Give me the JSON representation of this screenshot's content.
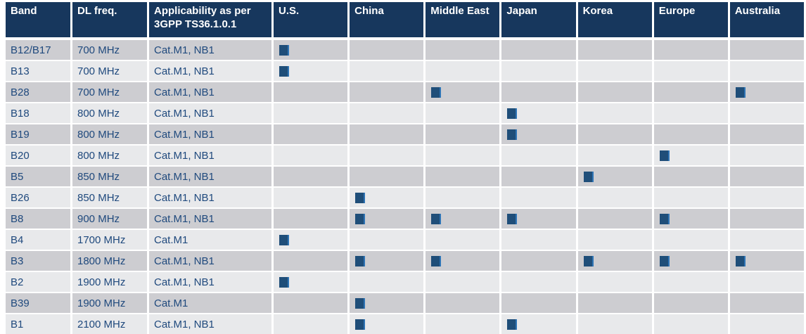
{
  "table": {
    "columns": [
      {
        "key": "band",
        "label": "Band",
        "type": "text"
      },
      {
        "key": "dl_freq",
        "label": "DL freq.",
        "type": "text"
      },
      {
        "key": "applicability",
        "label": "Applicability as per 3GPP TS36.1.0.1",
        "type": "text"
      },
      {
        "key": "us",
        "label": "U.S.",
        "type": "region"
      },
      {
        "key": "china",
        "label": "China",
        "type": "region"
      },
      {
        "key": "middle_east",
        "label": "Middle East",
        "type": "region"
      },
      {
        "key": "japan",
        "label": "Japan",
        "type": "region"
      },
      {
        "key": "korea",
        "label": "Korea",
        "type": "region"
      },
      {
        "key": "europe",
        "label": "Europe",
        "type": "region"
      },
      {
        "key": "australia",
        "label": "Australia",
        "type": "region"
      }
    ],
    "rows": [
      {
        "band": "B12/B17",
        "dl_freq": "700 MHz",
        "applicability": "Cat.M1, NB1",
        "regions": [
          "us"
        ]
      },
      {
        "band": "B13",
        "dl_freq": "700 MHz",
        "applicability": "Cat.M1, NB1",
        "regions": [
          "us"
        ]
      },
      {
        "band": "B28",
        "dl_freq": "700 MHz",
        "applicability": "Cat.M1, NB1",
        "regions": [
          "middle_east",
          "australia"
        ]
      },
      {
        "band": "B18",
        "dl_freq": "800 MHz",
        "applicability": "Cat.M1, NB1",
        "regions": [
          "japan"
        ]
      },
      {
        "band": "B19",
        "dl_freq": "800 MHz",
        "applicability": "Cat.M1, NB1",
        "regions": [
          "japan"
        ]
      },
      {
        "band": "B20",
        "dl_freq": "800 MHz",
        "applicability": "Cat.M1, NB1",
        "regions": [
          "europe"
        ]
      },
      {
        "band": "B5",
        "dl_freq": "850 MHz",
        "applicability": "Cat.M1, NB1",
        "regions": [
          "korea"
        ]
      },
      {
        "band": "B26",
        "dl_freq": "850 MHz",
        "applicability": "Cat.M1, NB1",
        "regions": [
          "china"
        ]
      },
      {
        "band": "B8",
        "dl_freq": "900 MHz",
        "applicability": "Cat.M1, NB1",
        "regions": [
          "china",
          "middle_east",
          "japan",
          "europe"
        ]
      },
      {
        "band": "B4",
        "dl_freq": "1700 MHz",
        "applicability": "Cat.M1",
        "regions": [
          "us"
        ]
      },
      {
        "band": "B3",
        "dl_freq": "1800 MHz",
        "applicability": "Cat.M1, NB1",
        "regions": [
          "china",
          "middle_east",
          "korea",
          "europe",
          "australia"
        ]
      },
      {
        "band": "B2",
        "dl_freq": "1900 MHz",
        "applicability": "Cat.M1, NB1",
        "regions": [
          "us"
        ]
      },
      {
        "band": "B39",
        "dl_freq": "1900 MHz",
        "applicability": "Cat.M1",
        "regions": [
          "china"
        ]
      },
      {
        "band": "B1",
        "dl_freq": "2100 MHz",
        "applicability": "Cat.M1, NB1",
        "regions": [
          "china",
          "japan"
        ]
      }
    ],
    "marker": {
      "name": "applicable-marker",
      "glyph": "■",
      "color": "#1F4E79"
    },
    "colors": {
      "header_bg": "#17375D",
      "header_text": "#FFFFFF",
      "row_dark": "#CDCDD1",
      "row_light": "#E8E9EB",
      "body_text": "#1F497D",
      "marker": "#1F4E79",
      "marker_edge": "#2E74B5",
      "grid": "#FFFFFF"
    }
  }
}
